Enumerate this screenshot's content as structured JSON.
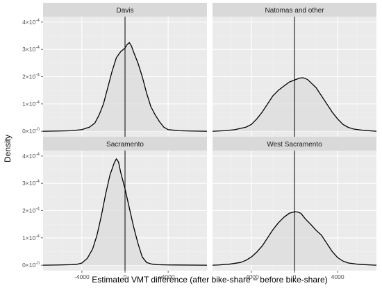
{
  "chart_data": {
    "type": "area",
    "xlabel": "Estimated VMT difference (after bike-share − before bike-share)",
    "ylabel": "Density",
    "xlim": [
      -7600,
      7600
    ],
    "ylim": [
      -2e-05,
      0.00042
    ],
    "x_ticks": [
      -4000,
      0,
      4000
    ],
    "x_tick_labels": [
      "-4000",
      "0",
      "4000"
    ],
    "y_ticks": [
      0,
      0.0001,
      0.0002,
      0.0003,
      0.0004
    ],
    "y_tick_labels": [
      {
        "mantissa": "0",
        "exponent": "-0"
      },
      {
        "mantissa": "1",
        "exponent": "-4"
      },
      {
        "mantissa": "2",
        "exponent": "-4"
      },
      {
        "mantissa": "3",
        "exponent": "-4"
      },
      {
        "mantissa": "4",
        "exponent": "-4"
      }
    ],
    "vline_x": 0,
    "grid": true,
    "colors": {
      "panel_bg": "#ebebeb",
      "grid_major": "#ffffff",
      "grid_minor": "#f2f2f2",
      "strip_bg": "#d9d9d9",
      "fill": "#dcdcdc",
      "line": "#000000"
    },
    "facets": [
      {
        "name": "Davis",
        "points": [
          [
            -7600,
            0
          ],
          [
            -6000,
            1e-06
          ],
          [
            -5000,
            2e-06
          ],
          [
            -4000,
            6e-06
          ],
          [
            -3300,
            1.5e-05
          ],
          [
            -2800,
            3e-05
          ],
          [
            -2400,
            6e-05
          ],
          [
            -2000,
            0.0001
          ],
          [
            -1600,
            0.00016
          ],
          [
            -1200,
            0.00022
          ],
          [
            -800,
            0.00027
          ],
          [
            -400,
            0.000292
          ],
          [
            0,
            0.000305
          ],
          [
            200,
            0.000318
          ],
          [
            400,
            0.000325
          ],
          [
            600,
            0.000312
          ],
          [
            800,
            0.00029
          ],
          [
            1200,
            0.00025
          ],
          [
            1600,
            0.0002
          ],
          [
            2000,
            0.00014
          ],
          [
            2400,
            9e-05
          ],
          [
            2800,
            6e-05
          ],
          [
            3200,
            3.5e-05
          ],
          [
            3600,
            1.5e-05
          ],
          [
            4000,
            6e-06
          ],
          [
            5000,
            2e-06
          ],
          [
            6000,
            1e-06
          ],
          [
            7600,
            0
          ]
        ]
      },
      {
        "name": "Natomas and other",
        "points": [
          [
            -7600,
            0
          ],
          [
            -6500,
            2e-06
          ],
          [
            -5500,
            6e-06
          ],
          [
            -4500,
            1.5e-05
          ],
          [
            -4000,
            2.5e-05
          ],
          [
            -3500,
            4.5e-05
          ],
          [
            -3000,
            7e-05
          ],
          [
            -2500,
            0.0001
          ],
          [
            -2000,
            0.00013
          ],
          [
            -1500,
            0.00015
          ],
          [
            -1000,
            0.000165
          ],
          [
            -500,
            0.00018
          ],
          [
            0,
            0.000188
          ],
          [
            500,
            0.000195
          ],
          [
            800,
            0.000196
          ],
          [
            1200,
            0.00019
          ],
          [
            1600,
            0.000175
          ],
          [
            2000,
            0.00016
          ],
          [
            2500,
            0.00013
          ],
          [
            3000,
            0.0001
          ],
          [
            3500,
            7e-05
          ],
          [
            4000,
            4.5e-05
          ],
          [
            4500,
            2.5e-05
          ],
          [
            5000,
            1.4e-05
          ],
          [
            5500,
            8e-06
          ],
          [
            6500,
            3e-06
          ],
          [
            7600,
            0
          ]
        ]
      },
      {
        "name": "Sacramento",
        "points": [
          [
            -7600,
            0
          ],
          [
            -6000,
            1e-06
          ],
          [
            -5000,
            2e-06
          ],
          [
            -4500,
            3e-06
          ],
          [
            -4000,
            8e-06
          ],
          [
            -3500,
            2.5e-05
          ],
          [
            -3000,
            6e-05
          ],
          [
            -2600,
            0.00011
          ],
          [
            -2200,
            0.00018
          ],
          [
            -1800,
            0.00026
          ],
          [
            -1400,
            0.00033
          ],
          [
            -1000,
            0.000375
          ],
          [
            -800,
            0.00039
          ],
          [
            -600,
            0.000378
          ],
          [
            -400,
            0.00034
          ],
          [
            0,
            0.00028
          ],
          [
            400,
            0.00021
          ],
          [
            800,
            0.00014
          ],
          [
            1200,
            8e-05
          ],
          [
            1600,
            3e-05
          ],
          [
            2000,
            1e-05
          ],
          [
            2500,
            4e-06
          ],
          [
            3000,
            2e-06
          ],
          [
            4000,
            1e-06
          ],
          [
            7600,
            0
          ]
        ]
      },
      {
        "name": "West Sacramento",
        "points": [
          [
            -7600,
            0
          ],
          [
            -7000,
            1e-06
          ],
          [
            -6000,
            4e-06
          ],
          [
            -5000,
            1e-05
          ],
          [
            -4500,
            1.8e-05
          ],
          [
            -4000,
            3e-05
          ],
          [
            -3500,
            4.8e-05
          ],
          [
            -3000,
            7e-05
          ],
          [
            -2500,
            0.0001
          ],
          [
            -2000,
            0.00013
          ],
          [
            -1500,
            0.000155
          ],
          [
            -1000,
            0.000175
          ],
          [
            -500,
            0.00019
          ],
          [
            0,
            0.000196
          ],
          [
            300,
            0.000195
          ],
          [
            600,
            0.00019
          ],
          [
            1000,
            0.00017
          ],
          [
            1500,
            0.00015
          ],
          [
            2000,
            0.000128
          ],
          [
            2500,
            0.00011
          ],
          [
            3000,
            8e-05
          ],
          [
            3500,
            5e-05
          ],
          [
            4000,
            2.8e-05
          ],
          [
            4500,
            1.5e-05
          ],
          [
            5000,
            8e-06
          ],
          [
            6000,
            3e-06
          ],
          [
            7000,
            1e-06
          ],
          [
            7600,
            0
          ]
        ]
      }
    ]
  }
}
